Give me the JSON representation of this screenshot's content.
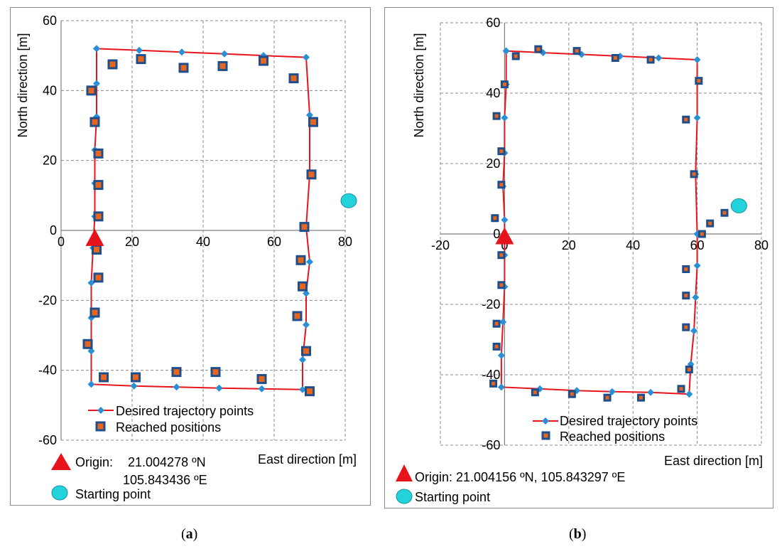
{
  "colors": {
    "trajectory_line": "#e8141c",
    "desired_marker": "#2b8fd6",
    "reached_outer": "#1f4e8c",
    "reached_inner": "#e8651e",
    "origin": "#e8141c",
    "start": "#22d3dc",
    "grid": "#8a8a8a",
    "frame": "#8a8a8a"
  },
  "figure_labels": {
    "a": {
      "open": "(",
      "letter": "a",
      "close": ")"
    },
    "b": {
      "open": "(",
      "letter": "b",
      "close": ")"
    }
  },
  "chart_data": [
    {
      "id": "a",
      "type": "line",
      "xlabel": "East direction [m]",
      "ylabel": "North direction [m]",
      "xlim": [
        0,
        80
      ],
      "ylim": [
        -60,
        60
      ],
      "xticks": [
        0,
        20,
        40,
        60,
        80
      ],
      "yticks": [
        -60,
        -40,
        -20,
        0,
        20,
        40,
        60
      ],
      "grid": true,
      "legend_position": "bottom-center",
      "series": [
        {
          "name": "Desired trajectory points",
          "kind": "line-diamond",
          "points": [
            [
              10,
              52
            ],
            [
              22,
              51.5
            ],
            [
              34,
              51
            ],
            [
              46,
              50.5
            ],
            [
              57,
              50
            ],
            [
              69,
              49.5
            ],
            [
              70,
              33
            ],
            [
              70,
              16
            ],
            [
              69,
              1
            ],
            [
              70,
              -9
            ],
            [
              69,
              -18
            ],
            [
              69,
              -27
            ],
            [
              68,
              -37
            ],
            [
              68,
              -45.5
            ],
            [
              56.5,
              -45.3
            ],
            [
              44.5,
              -45.1
            ],
            [
              32.5,
              -44.8
            ],
            [
              20.5,
              -44.5
            ],
            [
              8.5,
              -44
            ],
            [
              8.5,
              -34.5
            ],
            [
              8.5,
              -25
            ],
            [
              8.5,
              -15
            ],
            [
              9,
              -5
            ],
            [
              9.5,
              4
            ],
            [
              9.5,
              13.5
            ],
            [
              9.5,
              23
            ],
            [
              10,
              32.5
            ],
            [
              10,
              42
            ],
            [
              10,
              52
            ]
          ]
        },
        {
          "name": "Reached positions",
          "kind": "square",
          "points": [
            [
              14.5,
              47.5
            ],
            [
              22.5,
              49
            ],
            [
              34.5,
              46.5
            ],
            [
              45.5,
              47
            ],
            [
              57,
              48.5
            ],
            [
              65.5,
              43.5
            ],
            [
              71,
              31
            ],
            [
              70.5,
              16
            ],
            [
              68.5,
              1
            ],
            [
              67.5,
              -8.5
            ],
            [
              68,
              -16
            ],
            [
              66.5,
              -24.5
            ],
            [
              69,
              -34.5
            ],
            [
              70,
              -46
            ],
            [
              56.5,
              -42.5
            ],
            [
              43.5,
              -40.5
            ],
            [
              32.5,
              -40.5
            ],
            [
              21,
              -42
            ],
            [
              12,
              -42
            ],
            [
              7.5,
              -32.5
            ],
            [
              9.5,
              -23.5
            ],
            [
              10.5,
              -13.5
            ],
            [
              10,
              -5.5
            ],
            [
              10.5,
              4
            ],
            [
              10.5,
              13
            ],
            [
              10.5,
              22
            ],
            [
              9.5,
              31
            ],
            [
              8.5,
              40
            ]
          ]
        }
      ],
      "origin_point": [
        9.5,
        -2
      ],
      "start_point": [
        81,
        8.5
      ],
      "origin_label": "Origin:",
      "origin_coords": [
        "21.004278 ºN",
        "105.843436 ºE"
      ],
      "start_label": "Starting point"
    },
    {
      "id": "b",
      "type": "line",
      "xlabel": "East direction [m]",
      "ylabel": "North direction [m]",
      "xlim": [
        -20,
        80
      ],
      "ylim": [
        -60,
        60
      ],
      "xticks": [
        -20,
        0,
        20,
        40,
        60,
        80
      ],
      "yticks": [
        -60,
        -40,
        -20,
        0,
        20,
        40,
        60
      ],
      "grid": true,
      "legend_position": "bottom-center",
      "series": [
        {
          "name": "Desired trajectory points",
          "kind": "line-diamond",
          "points": [
            [
              0.5,
              52
            ],
            [
              12,
              51.5
            ],
            [
              24,
              51
            ],
            [
              36,
              50.5
            ],
            [
              48,
              50
            ],
            [
              60,
              49.5
            ],
            [
              60,
              33
            ],
            [
              59.5,
              17
            ],
            [
              60,
              0
            ],
            [
              60,
              -9
            ],
            [
              59.5,
              -18
            ],
            [
              59,
              -27.5
            ],
            [
              58,
              -37
            ],
            [
              57.5,
              -45.5
            ],
            [
              45.5,
              -45
            ],
            [
              33.5,
              -44.8
            ],
            [
              22.5,
              -44.5
            ],
            [
              11,
              -44
            ],
            [
              -1,
              -43.5
            ],
            [
              -1,
              -34.5
            ],
            [
              -0.5,
              -25
            ],
            [
              0,
              -15
            ],
            [
              0,
              -6
            ],
            [
              0,
              4
            ],
            [
              -0.5,
              13.5
            ],
            [
              0,
              23
            ],
            [
              0,
              33
            ],
            [
              0.5,
              42.5
            ],
            [
              0.5,
              52
            ]
          ]
        },
        {
          "name": "Reached positions",
          "kind": "square",
          "points": [
            [
              3.5,
              50.5
            ],
            [
              10.5,
              52.5
            ],
            [
              22.5,
              52
            ],
            [
              34.5,
              50
            ],
            [
              45.5,
              49.5
            ],
            [
              60.5,
              43.5
            ],
            [
              56.5,
              32.5
            ],
            [
              59,
              17
            ],
            [
              61.5,
              0
            ],
            [
              64,
              3
            ],
            [
              68.5,
              6
            ],
            [
              56.5,
              -10
            ],
            [
              56.5,
              -17.5
            ],
            [
              56.5,
              -26.5
            ],
            [
              57.5,
              -38.5
            ],
            [
              55,
              -44
            ],
            [
              42.5,
              -46.5
            ],
            [
              32,
              -46.5
            ],
            [
              21,
              -45.5
            ],
            [
              9.5,
              -45
            ],
            [
              -3.5,
              -42.5
            ],
            [
              -2.5,
              -32
            ],
            [
              -2.5,
              -25.5
            ],
            [
              -1,
              -14.5
            ],
            [
              -1,
              -6
            ],
            [
              -3,
              4.5
            ],
            [
              -1,
              14
            ],
            [
              -1,
              23.5
            ],
            [
              -2.5,
              33.5
            ],
            [
              0,
              42.5
            ]
          ]
        }
      ],
      "origin_point": [
        0,
        -0.5
      ],
      "start_point": [
        73,
        8
      ],
      "origin_label": "Origin: 21.004156 ºN, 105.843297 ºE",
      "origin_coords": [],
      "start_label": "Starting point"
    }
  ]
}
